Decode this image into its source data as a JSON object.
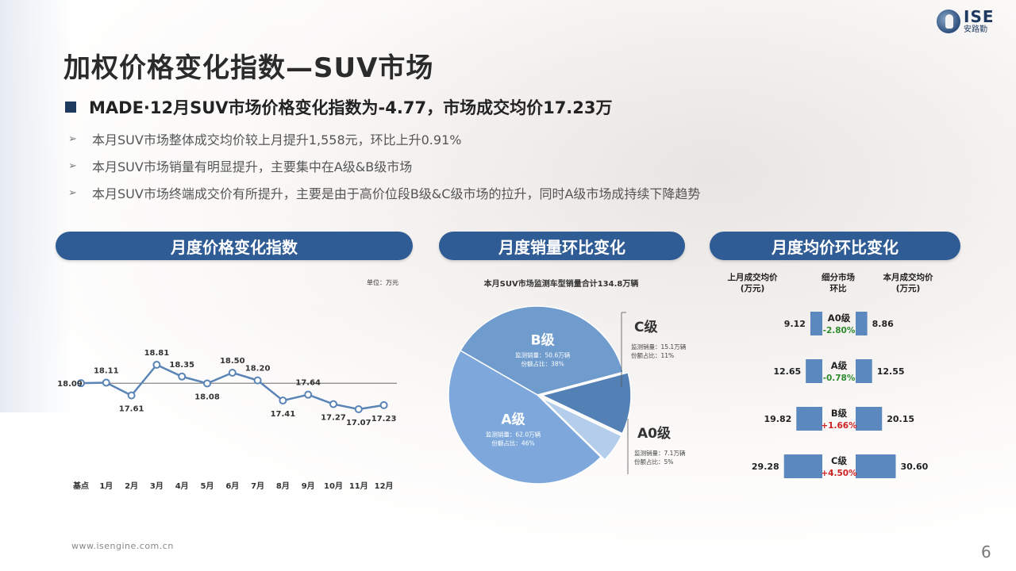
{
  "title": "加权价格变化指数—SUV市场",
  "headline": "MADE·12月SUV市场价格变化指数为-4.77，市场成交均价17.23万",
  "bullets": [
    "本月SUV市场整体成交均价较上月提升1,558元，环比上升0.91%",
    "本月SUV市场销量有明显提升，主要集中在A级&B级市场",
    "本月SUV市场终端成交价有所提升，主要是由于高价位段B级&C级市场的拉升，同时A级市场成持续下降趋势"
  ],
  "logo": {
    "main": "ISE",
    "sub": "安路勤"
  },
  "sections": {
    "index": "月度价格变化指数",
    "sales": "月度销量环比变化",
    "price": "月度均价环比变化"
  },
  "unit_note": "单位：万元",
  "pie_note": "本月SUV市场监测车型销量合计134.8万辆",
  "price_headers": {
    "prev": "上月成交均价\n(万元)",
    "segment": "细分市场\n环比",
    "curr": "本月成交均价\n(万元)"
  },
  "footer_url": "www.isengine.com.cn",
  "page_number": "6",
  "colors": {
    "navy": "#2f5c94",
    "line": "#5a84b6",
    "pie_b": "#6f9bcd",
    "pie_a": "#7ea8db",
    "pie_c": "#5381b5",
    "pie_a0": "#b4cdea",
    "bar": "#5b88bf",
    "down": "#2e8b2e",
    "up": "#cc2222"
  },
  "chart_data": [
    {
      "type": "line",
      "categories": [
        "基点",
        "1月",
        "2月",
        "3月",
        "4月",
        "5月",
        "6月",
        "7月",
        "8月",
        "9月",
        "10月",
        "11月",
        "12月"
      ],
      "values": [
        18.09,
        18.11,
        17.61,
        18.81,
        18.35,
        18.08,
        18.5,
        18.2,
        17.41,
        17.64,
        17.27,
        17.07,
        17.23
      ],
      "labels": [
        "18.09",
        "18.11",
        "17.61",
        "18.81",
        "18.35",
        "18.08",
        "18.50",
        "18.20",
        "17.41",
        "17.64",
        "17.27",
        "17.07",
        "17.23"
      ],
      "reference_line": 18.09,
      "ylabel": "单位：万元"
    },
    {
      "type": "pie",
      "title": "本月SUV市场监测车型销量合计134.8万辆",
      "slices": [
        {
          "name": "B级",
          "value": 50.6,
          "share": 38,
          "detail1": "监测销量：50.6万辆",
          "detail2": "份额占比：38%"
        },
        {
          "name": "C级",
          "value": 15.1,
          "share": 11,
          "detail1": "监测销量：15.1万辆",
          "detail2": "份额占比：11%"
        },
        {
          "name": "A0级",
          "value": 7.1,
          "share": 5,
          "detail1": "监测销量：7.1万辆",
          "detail2": "份额占比：5%"
        },
        {
          "name": "A级",
          "value": 62.0,
          "share": 46,
          "detail1": "监测销量：62.0万辆",
          "detail2": "份额占比：46%"
        }
      ]
    },
    {
      "type": "bar",
      "categories": [
        "A0级",
        "A级",
        "B级",
        "C级"
      ],
      "series": [
        {
          "name": "上月成交均价(万元)",
          "values": [
            9.12,
            12.65,
            19.82,
            29.28
          ]
        },
        {
          "name": "本月成交均价(万元)",
          "values": [
            8.86,
            12.55,
            20.15,
            30.6
          ]
        }
      ],
      "prev_labels": [
        "9.12",
        "12.65",
        "19.82",
        "29.28"
      ],
      "curr_labels": [
        "8.86",
        "12.55",
        "20.15",
        "30.60"
      ],
      "change_labels": [
        "-2.80%",
        "-0.78%",
        "+1.66%",
        "+4.50%"
      ],
      "change_direction": [
        "down",
        "down",
        "up",
        "up"
      ]
    }
  ]
}
